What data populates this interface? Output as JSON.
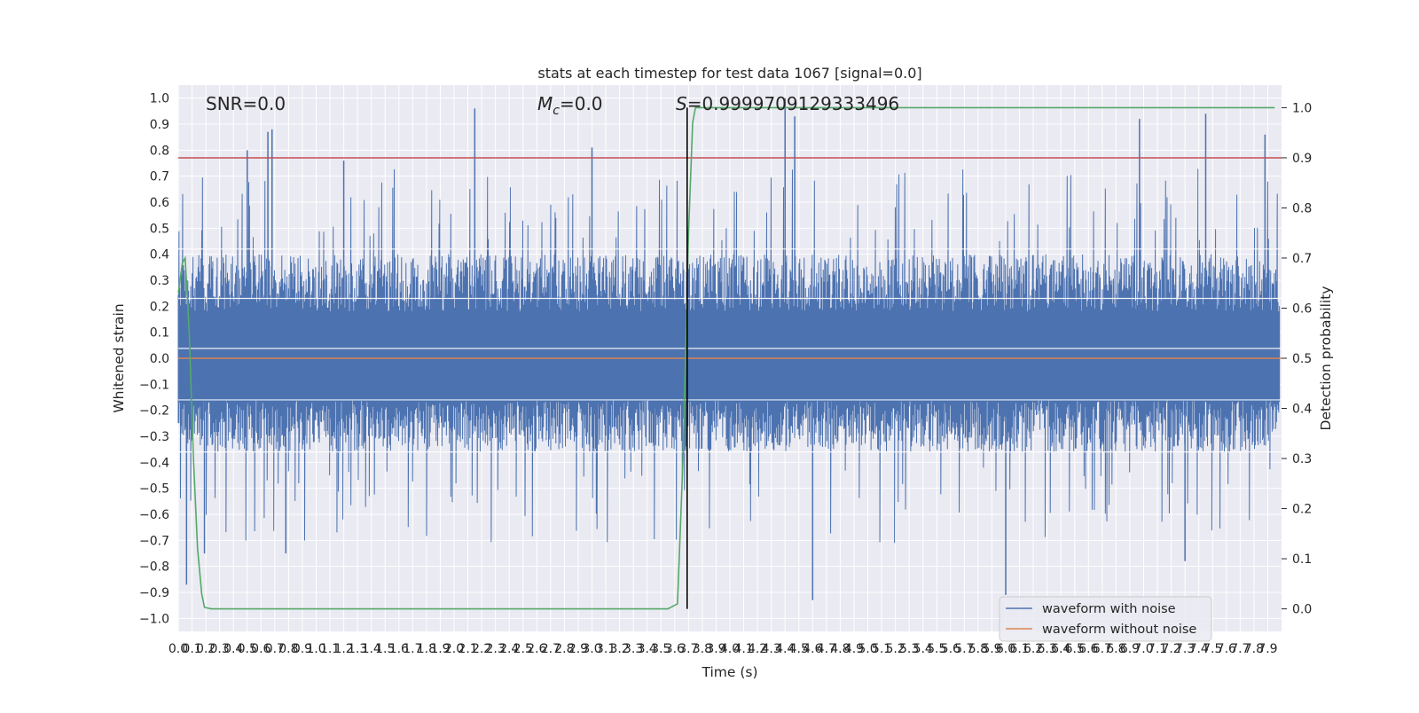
{
  "chart_data": {
    "type": "line",
    "title": "stats at each timestep for test data 1067 [signal=0.0]",
    "xlabel": "Time (s)",
    "ylabel": "Whitened strain",
    "y2label": "Detection probability",
    "xlim": [
      0.0,
      8.0
    ],
    "ylim": [
      -1.05,
      1.05
    ],
    "y2lim": [
      -0.045,
      1.045
    ],
    "x_ticks": [
      0.0,
      0.1,
      0.2,
      0.3,
      0.4,
      0.5,
      0.6,
      0.7,
      0.8,
      0.9,
      1.0,
      1.1,
      1.2,
      1.3,
      1.4,
      1.5,
      1.6,
      1.7,
      1.8,
      1.9,
      2.0,
      2.1,
      2.2,
      2.3,
      2.4,
      2.5,
      2.6,
      2.7,
      2.8,
      2.9,
      3.0,
      3.1,
      3.2,
      3.3,
      3.4,
      3.5,
      3.6,
      3.7,
      3.8,
      3.9,
      4.0,
      4.1,
      4.2,
      4.3,
      4.4,
      4.5,
      4.6,
      4.7,
      4.8,
      4.9,
      5.0,
      5.1,
      5.2,
      5.3,
      5.4,
      5.5,
      5.6,
      5.7,
      5.8,
      5.9,
      6.0,
      6.1,
      6.2,
      6.3,
      6.4,
      6.5,
      6.6,
      6.7,
      6.8,
      6.9,
      7.0,
      7.1,
      7.2,
      7.3,
      7.4,
      7.5,
      7.6,
      7.7,
      7.8,
      7.9
    ],
    "x_tick_labels": [
      "0.0",
      "0.1",
      "0.2",
      "0.3",
      "0.4",
      "0.5",
      "0.6",
      "0.7",
      "0.8",
      "0.9",
      "1.0",
      "1.1",
      "1.2",
      "1.3",
      "1.4",
      "1.5",
      "1.6",
      "1.7",
      "1.8",
      "1.9",
      "2.0",
      "2.1",
      "2.2",
      "2.3",
      "2.4",
      "2.5",
      "2.6",
      "2.7",
      "2.8",
      "2.9",
      "3.0",
      "3.1",
      "3.2",
      "3.3",
      "3.4",
      "3.5",
      "3.6",
      "3.7",
      "3.8",
      "3.9",
      "4.0",
      "4.1",
      "4.2",
      "4.3",
      "4.4",
      "4.5",
      "4.6",
      "4.7",
      "4.8",
      "4.9",
      "5.0",
      "5.1",
      "5.2",
      "5.3",
      "5.4",
      "5.5",
      "5.6",
      "5.7",
      "5.8",
      "5.9",
      "6.0",
      "6.1",
      "6.2",
      "6.3",
      "6.4",
      "6.5",
      "6.6",
      "6.7",
      "6.8",
      "6.9",
      "7.0",
      "7.1",
      "7.2",
      "7.3",
      "7.4",
      "7.5",
      "7.6",
      "7.7",
      "7.8",
      "7.9"
    ],
    "y_ticks": [
      -1.0,
      -0.9,
      -0.8,
      -0.7,
      -0.6,
      -0.5,
      -0.4,
      -0.3,
      -0.2,
      -0.1,
      0.0,
      0.1,
      0.2,
      0.3,
      0.4,
      0.5,
      0.6,
      0.7,
      0.8,
      0.9,
      1.0
    ],
    "y_tick_labels": [
      "−1.0",
      "−0.9",
      "−0.8",
      "−0.7",
      "−0.6",
      "−0.5",
      "−0.4",
      "−0.3",
      "−0.2",
      "−0.1",
      "0.0",
      "0.1",
      "0.2",
      "0.3",
      "0.4",
      "0.5",
      "0.6",
      "0.7",
      "0.8",
      "0.9",
      "1.0"
    ],
    "y2_ticks": [
      0.0,
      0.1,
      0.2,
      0.3,
      0.4,
      0.5,
      0.6,
      0.7,
      0.8,
      0.9,
      1.0
    ],
    "y2_tick_labels": [
      "0.0",
      "0.1",
      "0.2",
      "0.3",
      "0.4",
      "0.5",
      "0.6",
      "0.7",
      "0.8",
      "0.9",
      "1.0"
    ],
    "grid": true,
    "legend_position": "bottom-right",
    "annotations": {
      "snr": "SNR=0.0",
      "mc_symbol": "M",
      "mc_sub": "c",
      "mc_value": "=0.0",
      "s_symbol": "S",
      "s_value": "=0.9999709129333496"
    },
    "series": [
      {
        "name": "waveform with noise",
        "color": "#4c72b0",
        "axis": "left",
        "noise_band": {
          "core_high": 0.4,
          "core_low": -0.36
        },
        "notable_peaks": [
          {
            "x": 0.5,
            "y": 0.8
          },
          {
            "x": 0.65,
            "y": 0.87
          },
          {
            "x": 0.68,
            "y": 0.88
          },
          {
            "x": 1.2,
            "y": 0.76
          },
          {
            "x": 2.15,
            "y": 0.96
          },
          {
            "x": 3.0,
            "y": 0.81
          },
          {
            "x": 4.4,
            "y": 1.0
          },
          {
            "x": 4.47,
            "y": 0.93
          },
          {
            "x": 6.97,
            "y": 0.92
          },
          {
            "x": 7.45,
            "y": 0.94
          },
          {
            "x": 7.88,
            "y": 0.86
          }
        ],
        "notable_troughs": [
          {
            "x": 0.06,
            "y": -0.87
          },
          {
            "x": 0.19,
            "y": -0.75
          },
          {
            "x": 0.78,
            "y": -0.75
          },
          {
            "x": 4.6,
            "y": -0.93
          },
          {
            "x": 6.0,
            "y": -0.91
          },
          {
            "x": 7.3,
            "y": -0.78
          }
        ]
      },
      {
        "name": "waveform without noise",
        "color": "#dd8452",
        "axis": "left",
        "x": [
          0.0,
          8.0
        ],
        "y": [
          0.0,
          0.0
        ]
      },
      {
        "name": "detection probability",
        "color": "#55a868",
        "axis": "right",
        "x": [
          0.0,
          0.03,
          0.05,
          0.08,
          0.11,
          0.14,
          0.17,
          0.19,
          0.24,
          0.3,
          1.0,
          2.0,
          3.0,
          3.4,
          3.55,
          3.62,
          3.66,
          3.7,
          3.73,
          3.75,
          3.8,
          5.0,
          6.0,
          7.0,
          7.95
        ],
        "y": [
          0.63,
          0.69,
          0.7,
          0.55,
          0.3,
          0.12,
          0.03,
          0.003,
          0.0,
          0.0,
          0.0,
          0.0,
          0.0,
          0.0,
          0.0,
          0.01,
          0.3,
          0.75,
          0.97,
          1.0,
          1.0,
          1.0,
          1.0,
          1.0,
          1.0
        ]
      }
    ],
    "threshold_line": {
      "axis": "right",
      "y": 0.9,
      "color": "#c44e52"
    },
    "marker_line": {
      "x": 3.69,
      "y_from": 0.0,
      "y_to": 1.0,
      "color": "#000000"
    }
  }
}
